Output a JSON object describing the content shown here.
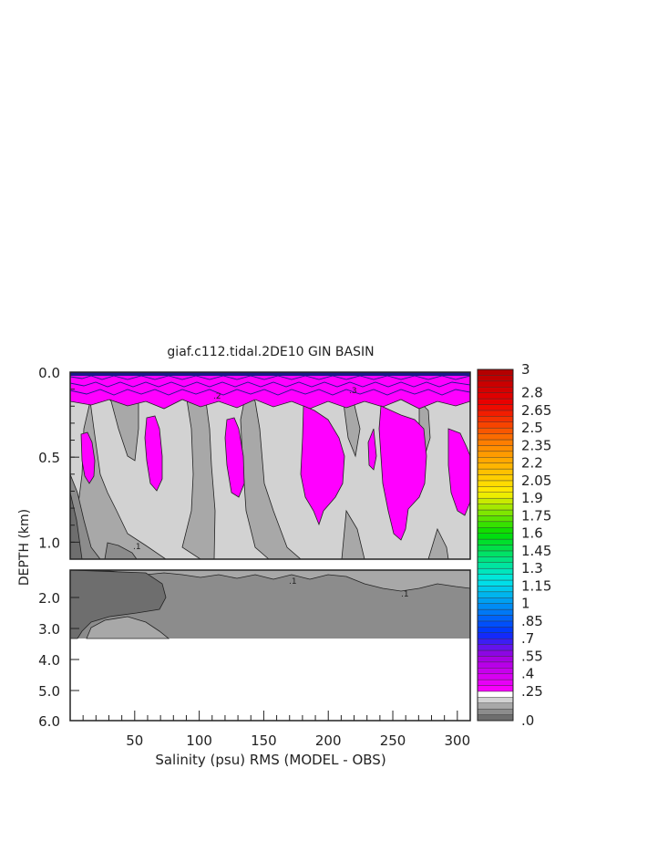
{
  "chart_data": {
    "type": "heatmap",
    "title": "giaf.c112.tidal.2DE10 GIN BASIN",
    "xlabel": "Salinity (psu) RMS (MODEL - OBS)",
    "ylabel": "DEPTH (km)",
    "xlim": [
      0,
      310
    ],
    "x_ticks": [
      "50",
      "100",
      "150",
      "200",
      "250",
      "300"
    ],
    "upper_panel": {
      "ylim": [
        0.0,
        1.1
      ],
      "y_ticks": [
        "0.0",
        "0.5",
        "1.0"
      ]
    },
    "lower_panel": {
      "ylim": [
        1.2,
        6.0
      ],
      "y_ticks": [
        "2.0",
        "3.0",
        "4.0",
        "5.0",
        "6.0"
      ]
    },
    "contour_labels": [
      ".2",
      ".1",
      ".3",
      ".1",
      ".1"
    ],
    "colorbar": {
      "labels": [
        ".0",
        ".25",
        ".4",
        ".55",
        ".7",
        ".85",
        "1",
        "1.15",
        "1.3",
        "1.45",
        "1.6",
        "1.75",
        "1.9",
        "2.05",
        "2.2",
        "2.35",
        "2.5",
        "2.65",
        "2.8",
        "3"
      ],
      "min": 0,
      "max": 3,
      "level_step": 0.05,
      "colors": {
        "0.0-0.05": "#6e6e6e",
        "0.05-0.1": "#8c8c8c",
        "0.1-0.15": "#a8a8a8",
        "0.15-0.2": "#d2d2d2",
        "0.2-0.25": "#ffffff",
        "magenta": "#ff00ff",
        "purple": "#a000e0",
        "blue": "#0030ff",
        "cyan": "#00e8e8",
        "green": "#00dd00",
        "yellow": "#ffee00",
        "orange": "#ff8800",
        "red": "#ee0000",
        "darkred": "#b00000"
      }
    },
    "fill_colors": {
      "lightgray": "#d2d2d2",
      "midgray": "#a8a8a8",
      "darkgray": "#8c8c8c",
      "deepgray": "#6e6e6e",
      "magenta": "#ff00ff",
      "navy": "#1a1a8a"
    }
  }
}
